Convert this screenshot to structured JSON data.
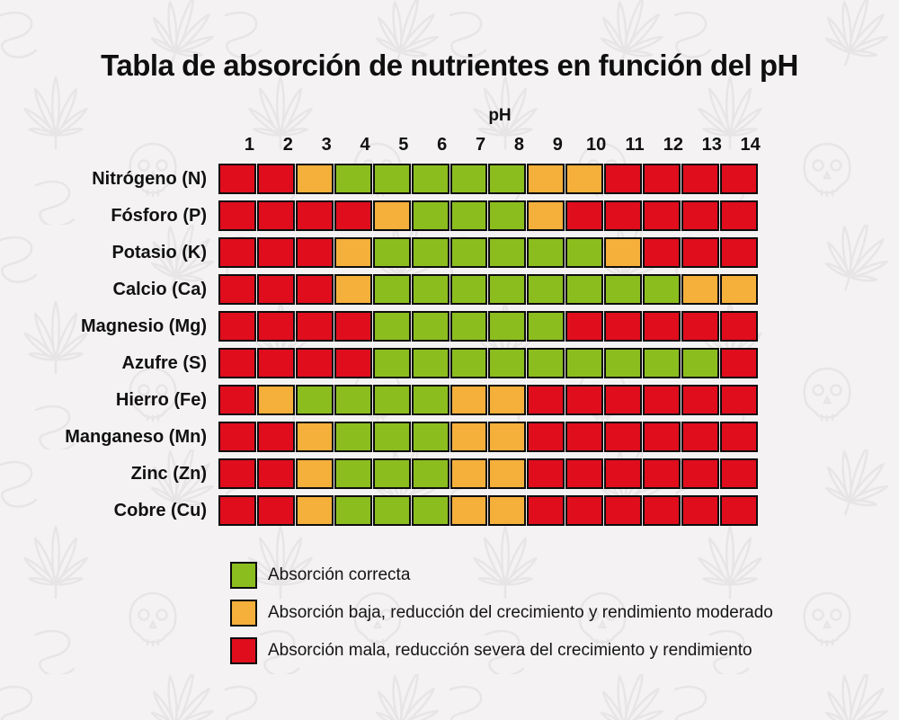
{
  "colors": {
    "good": "#8cbd1f",
    "low": "#f5af3b",
    "bad": "#e00d1d",
    "background": "#f4f2f3",
    "cell_border": "#0d0d0d"
  },
  "chart_data": {
    "type": "heatmap",
    "title": "Tabla de absorción de nutrientes en función del pH",
    "xlabel": "pH",
    "x": [
      1,
      2,
      3,
      4,
      5,
      6,
      7,
      8,
      9,
      10,
      11,
      12,
      13,
      14
    ],
    "categories": [
      "Nitrógeno (N)",
      "Fósforo (P)",
      "Potasio (K)",
      "Calcio (Ca)",
      "Magnesio (Mg)",
      "Azufre (S)",
      "Hierro (Fe)",
      "Manganeso (Mn)",
      "Zinc (Zn)",
      "Cobre (Cu)"
    ],
    "value_scale": {
      "good": "Absorción correcta",
      "low": "Absorción baja",
      "bad": "Absorción mala"
    },
    "rows": [
      {
        "label": "Nitrógeno (N)",
        "values": [
          "bad",
          "bad",
          "low",
          "good",
          "good",
          "good",
          "good",
          "good",
          "low",
          "low",
          "bad",
          "bad",
          "bad",
          "bad"
        ]
      },
      {
        "label": "Fósforo (P)",
        "values": [
          "bad",
          "bad",
          "bad",
          "bad",
          "low",
          "good",
          "good",
          "good",
          "low",
          "bad",
          "bad",
          "bad",
          "bad",
          "bad"
        ]
      },
      {
        "label": "Potasio (K)",
        "values": [
          "bad",
          "bad",
          "bad",
          "low",
          "good",
          "good",
          "good",
          "good",
          "good",
          "good",
          "low",
          "bad",
          "bad",
          "bad"
        ]
      },
      {
        "label": "Calcio (Ca)",
        "values": [
          "bad",
          "bad",
          "bad",
          "low",
          "good",
          "good",
          "good",
          "good",
          "good",
          "good",
          "good",
          "good",
          "low",
          "low"
        ]
      },
      {
        "label": "Magnesio (Mg)",
        "values": [
          "bad",
          "bad",
          "bad",
          "bad",
          "good",
          "good",
          "good",
          "good",
          "good",
          "bad",
          "bad",
          "bad",
          "bad",
          "bad"
        ]
      },
      {
        "label": "Azufre (S)",
        "values": [
          "bad",
          "bad",
          "bad",
          "bad",
          "good",
          "good",
          "good",
          "good",
          "good",
          "good",
          "good",
          "good",
          "good",
          "bad"
        ]
      },
      {
        "label": "Hierro (Fe)",
        "values": [
          "bad",
          "low",
          "good",
          "good",
          "good",
          "good",
          "low",
          "low",
          "bad",
          "bad",
          "bad",
          "bad",
          "bad",
          "bad"
        ]
      },
      {
        "label": "Manganeso (Mn)",
        "values": [
          "bad",
          "bad",
          "low",
          "good",
          "good",
          "good",
          "low",
          "low",
          "bad",
          "bad",
          "bad",
          "bad",
          "bad",
          "bad"
        ]
      },
      {
        "label": "Zinc (Zn)",
        "values": [
          "bad",
          "bad",
          "low",
          "good",
          "good",
          "good",
          "low",
          "low",
          "bad",
          "bad",
          "bad",
          "bad",
          "bad",
          "bad"
        ]
      },
      {
        "label": "Cobre (Cu)",
        "values": [
          "bad",
          "bad",
          "low",
          "good",
          "good",
          "good",
          "low",
          "low",
          "bad",
          "bad",
          "bad",
          "bad",
          "bad",
          "bad"
        ]
      }
    ],
    "legend": [
      {
        "key": "good",
        "color": "#8cbd1f",
        "label": "Absorción correcta"
      },
      {
        "key": "low",
        "color": "#f5af3b",
        "label": "Absorción baja, reducción del crecimiento y rendimiento moderado"
      },
      {
        "key": "bad",
        "color": "#e00d1d",
        "label": "Absorción mala, reducción severa del crecimiento y rendimiento"
      }
    ],
    "legend_position": "bottom-left",
    "grid": false
  }
}
